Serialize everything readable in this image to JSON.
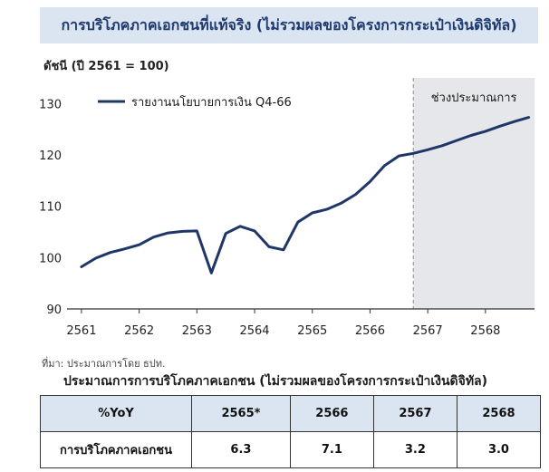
{
  "title": "การบริโภคภาคเอกชนที่แท้จริง (ไม่รวมผลของโครงการกระเป๋าเงินดิจิทัล)",
  "source": "ที่มา: ประมาณการโดย ธปท.",
  "chart_data": {
    "type": "line",
    "ylabel": "ดัชนี (ปี 2561 = 100)",
    "ylim": [
      90,
      135
    ],
    "yticks": [
      90,
      100,
      110,
      120,
      130
    ],
    "xlim": [
      2560.75,
      2568.85
    ],
    "xticks": [
      "2561",
      "2562",
      "2563",
      "2564",
      "2565",
      "2566",
      "2567",
      "2568"
    ],
    "grid": false,
    "legend_position": "top-left",
    "forecast_start": 2566.75,
    "forecast_label": "ช่วงประมาณการ",
    "series": [
      {
        "name": "รายงานนโยบายการเงิน Q4-66",
        "color": "#1f3768",
        "x": [
          2561.0,
          2561.25,
          2561.5,
          2561.75,
          2562.0,
          2562.25,
          2562.5,
          2562.75,
          2563.0,
          2563.25,
          2563.5,
          2563.75,
          2564.0,
          2564.25,
          2564.5,
          2564.75,
          2565.0,
          2565.25,
          2565.5,
          2565.75,
          2566.0,
          2566.25,
          2566.5,
          2566.75,
          2567.0,
          2567.25,
          2567.5,
          2567.75,
          2568.0,
          2568.25,
          2568.5,
          2568.75
        ],
        "values": [
          98.2,
          99.9,
          101.0,
          101.7,
          102.5,
          104.0,
          104.8,
          105.1,
          105.2,
          97.0,
          104.7,
          106.1,
          105.2,
          102.1,
          101.5,
          106.9,
          108.7,
          109.4,
          110.6,
          112.3,
          114.8,
          117.9,
          119.8,
          120.3,
          121.0,
          121.8,
          122.8,
          123.8,
          124.6,
          125.6,
          126.5,
          127.3
        ]
      }
    ]
  },
  "table": {
    "title": "ประมาณการการบริโภคภาคเอกชน (ไม่รวมผลของโครงการกระเป๋าเงินดิจิทัล)",
    "headers": [
      "%YoY",
      "2565*",
      "2566",
      "2567",
      "2568"
    ],
    "rows": [
      {
        "label": "การบริโภคภาคเอกชน",
        "values": [
          "6.3",
          "7.1",
          "3.2",
          "3.0"
        ]
      }
    ]
  }
}
